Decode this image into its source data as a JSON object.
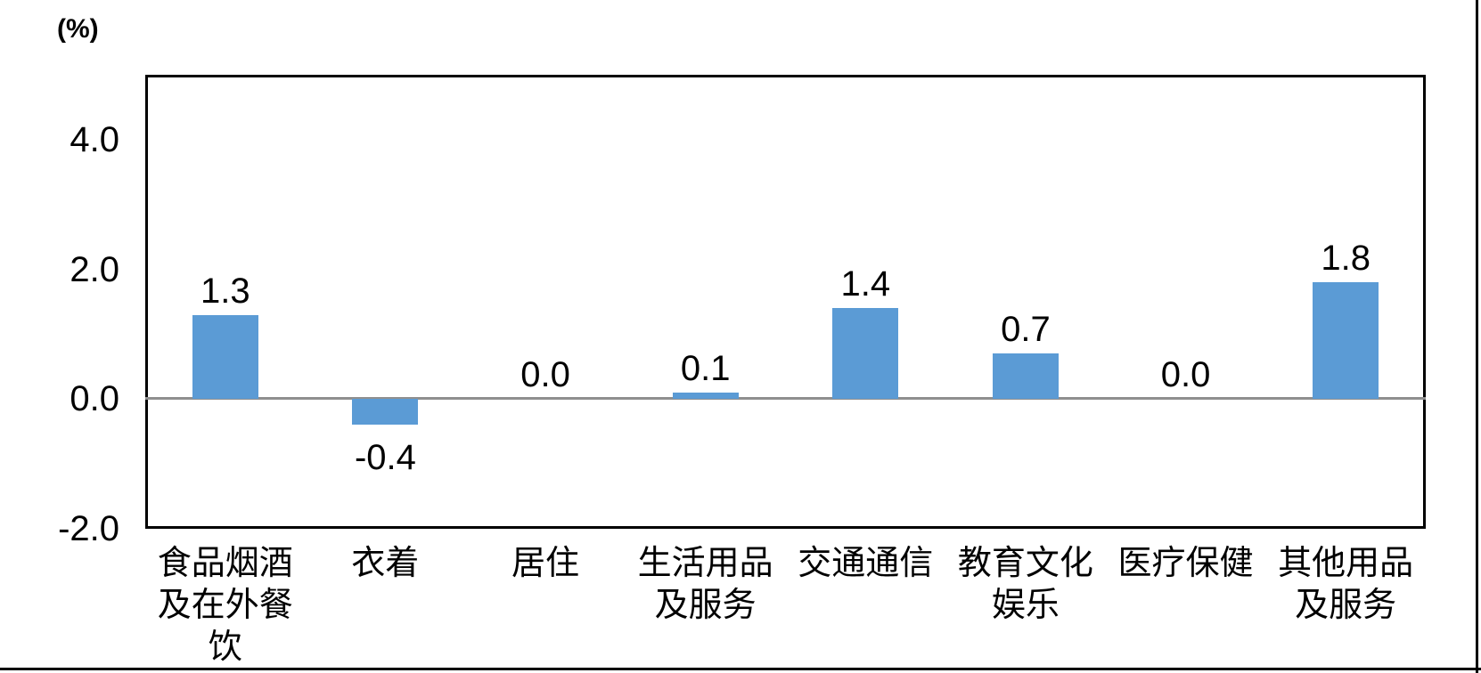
{
  "chart_data": {
    "type": "bar",
    "title": "",
    "unit": "(%)",
    "categories": [
      "食品烟酒\n及在外餐\n饮",
      "衣着",
      "居住",
      "生活用品\n及服务",
      "交通通信",
      "教育文化\n娱乐",
      "医疗保健",
      "其他用品\n及服务"
    ],
    "values": [
      1.3,
      -0.4,
      0.0,
      0.1,
      1.4,
      0.7,
      0.0,
      1.8
    ],
    "value_labels": [
      "1.3",
      "-0.4",
      "0.0",
      "0.1",
      "1.4",
      "0.7",
      "0.0",
      "1.8"
    ],
    "series_name": "",
    "xlabel": "",
    "ylabel": "(%)",
    "ylim": [
      -2,
      5
    ],
    "y_ticks": [
      {
        "value": 4,
        "label": "4.0"
      },
      {
        "value": 2,
        "label": "2.0"
      },
      {
        "value": 0,
        "label": "0.0"
      },
      {
        "value": -2,
        "label": "-2.0"
      }
    ],
    "grid": "zero-line-only",
    "legend": "none",
    "bar_color": "#5B9BD5",
    "zero_line_color": "#8f8f8f",
    "plot_border_color": "#000000"
  }
}
